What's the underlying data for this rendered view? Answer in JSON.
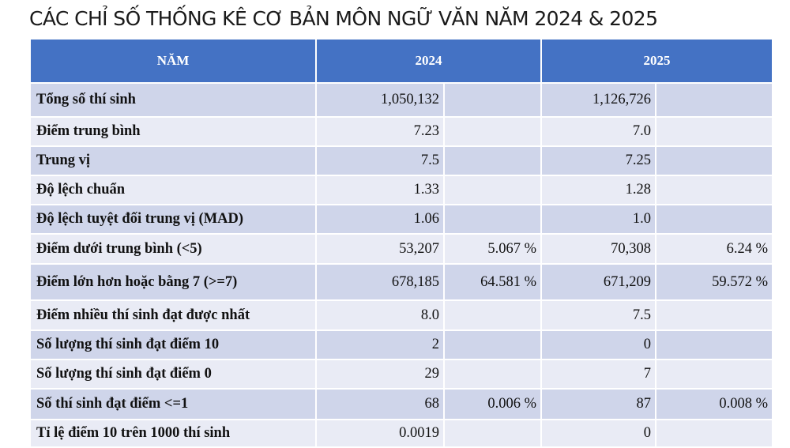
{
  "title": "CÁC CHỈ SỐ THỐNG KÊ CƠ BẢN MÔN NGỮ VĂN NĂM 2024 & 2025",
  "table": {
    "header": {
      "label": "NĂM",
      "y2024": "2024",
      "y2025": "2025"
    },
    "rows": [
      {
        "label": "Tổng số thí sinh",
        "v2024": "1,050,132",
        "p2024": "",
        "v2025": "1,126,726",
        "p2025": ""
      },
      {
        "label": "Điểm trung bình",
        "v2024": "7.23",
        "p2024": "",
        "v2025": "7.0",
        "p2025": ""
      },
      {
        "label": "Trung vị",
        "v2024": "7.5",
        "p2024": "",
        "v2025": "7.25",
        "p2025": ""
      },
      {
        "label": "Độ lệch chuẩn",
        "v2024": "1.33",
        "p2024": "",
        "v2025": "1.28",
        "p2025": ""
      },
      {
        "label": "Độ lệch tuyệt đối trung vị (MAD)",
        "v2024": "1.06",
        "p2024": "",
        "v2025": "1.0",
        "p2025": ""
      },
      {
        "label": "Điểm dưới trung bình (<5)",
        "v2024": "53,207",
        "p2024": "5.067 %",
        "v2025": "70,308",
        "p2025": "6.24 %"
      },
      {
        "label": "Điểm lớn hơn hoặc bằng 7 (>=7)",
        "v2024": "678,185",
        "p2024": "64.581 %",
        "v2025": "671,209",
        "p2025": "59.572 %"
      },
      {
        "label": "Điểm nhiều thí sinh đạt được nhất",
        "v2024": "8.0",
        "p2024": "",
        "v2025": "7.5",
        "p2025": ""
      },
      {
        "label": "Số lượng thí sinh đạt điểm 10",
        "v2024": "2",
        "p2024": "",
        "v2025": "0",
        "p2025": ""
      },
      {
        "label": "Số lượng thí sinh đạt điểm 0",
        "v2024": "29",
        "p2024": "",
        "v2025": "7",
        "p2025": ""
      },
      {
        "label": "Số thí sinh đạt điểm <=1",
        "v2024": "68",
        "p2024": "0.006 %",
        "v2025": "87",
        "p2025": "0.008 %"
      },
      {
        "label": "Tỉ lệ điểm 10 trên 1000 thí sinh",
        "v2024": "0.0019",
        "p2024": "",
        "v2025": "0",
        "p2025": ""
      }
    ],
    "highlight_color": "#ff0000",
    "header_color": "#4472c4"
  }
}
